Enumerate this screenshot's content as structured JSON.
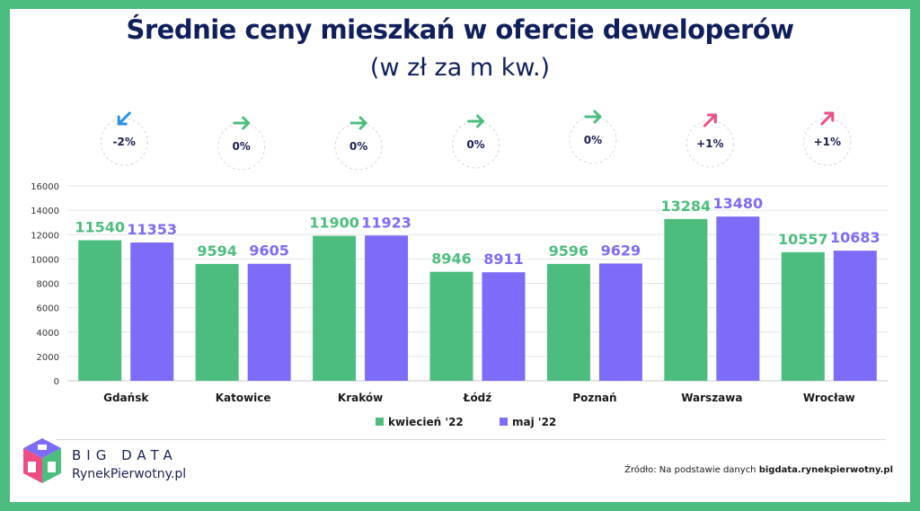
{
  "title": "Średnie ceny mieszkań w ofercie deweloperów",
  "subtitle": "(w zł za m kw.)",
  "colors": {
    "kwiecien": "#4dbd7f",
    "maj": "#7c6cf7",
    "down": "#2a8ee8",
    "flat": "#4dbd7f",
    "up": "#ee4d84",
    "frame": "#4dbd7f",
    "title": "#0f1f5c"
  },
  "changes": [
    {
      "label": "-2%",
      "direction": "down"
    },
    {
      "label": "0%",
      "direction": "flat"
    },
    {
      "label": "0%",
      "direction": "flat"
    },
    {
      "label": "0%",
      "direction": "flat"
    },
    {
      "label": "0%",
      "direction": "flat"
    },
    {
      "label": "+1%",
      "direction": "up"
    },
    {
      "label": "+1%",
      "direction": "up"
    }
  ],
  "chart_data": {
    "type": "bar",
    "categories": [
      "Gdańsk",
      "Katowice",
      "Kraków",
      "Łódź",
      "Poznań",
      "Warszawa",
      "Wrocław"
    ],
    "series": [
      {
        "name": "kwiecień '22",
        "values": [
          11540,
          9594,
          11900,
          8946,
          9596,
          13284,
          10557
        ]
      },
      {
        "name": "maj '22",
        "values": [
          11353,
          9605,
          11923,
          8911,
          9629,
          13480,
          10683
        ]
      }
    ],
    "yticks": [
      0,
      2000,
      4000,
      6000,
      8000,
      10000,
      12000,
      14000,
      16000
    ],
    "ylim": [
      0,
      16000
    ],
    "grid": true,
    "legend": "bottom"
  },
  "brand": {
    "line1": "BIG DATA",
    "line2": "RynekPierwotny.pl"
  },
  "source": {
    "prefix": "Źródło: Na podstawie danych",
    "site": "bigdata.rynekpierwotny.pl"
  }
}
